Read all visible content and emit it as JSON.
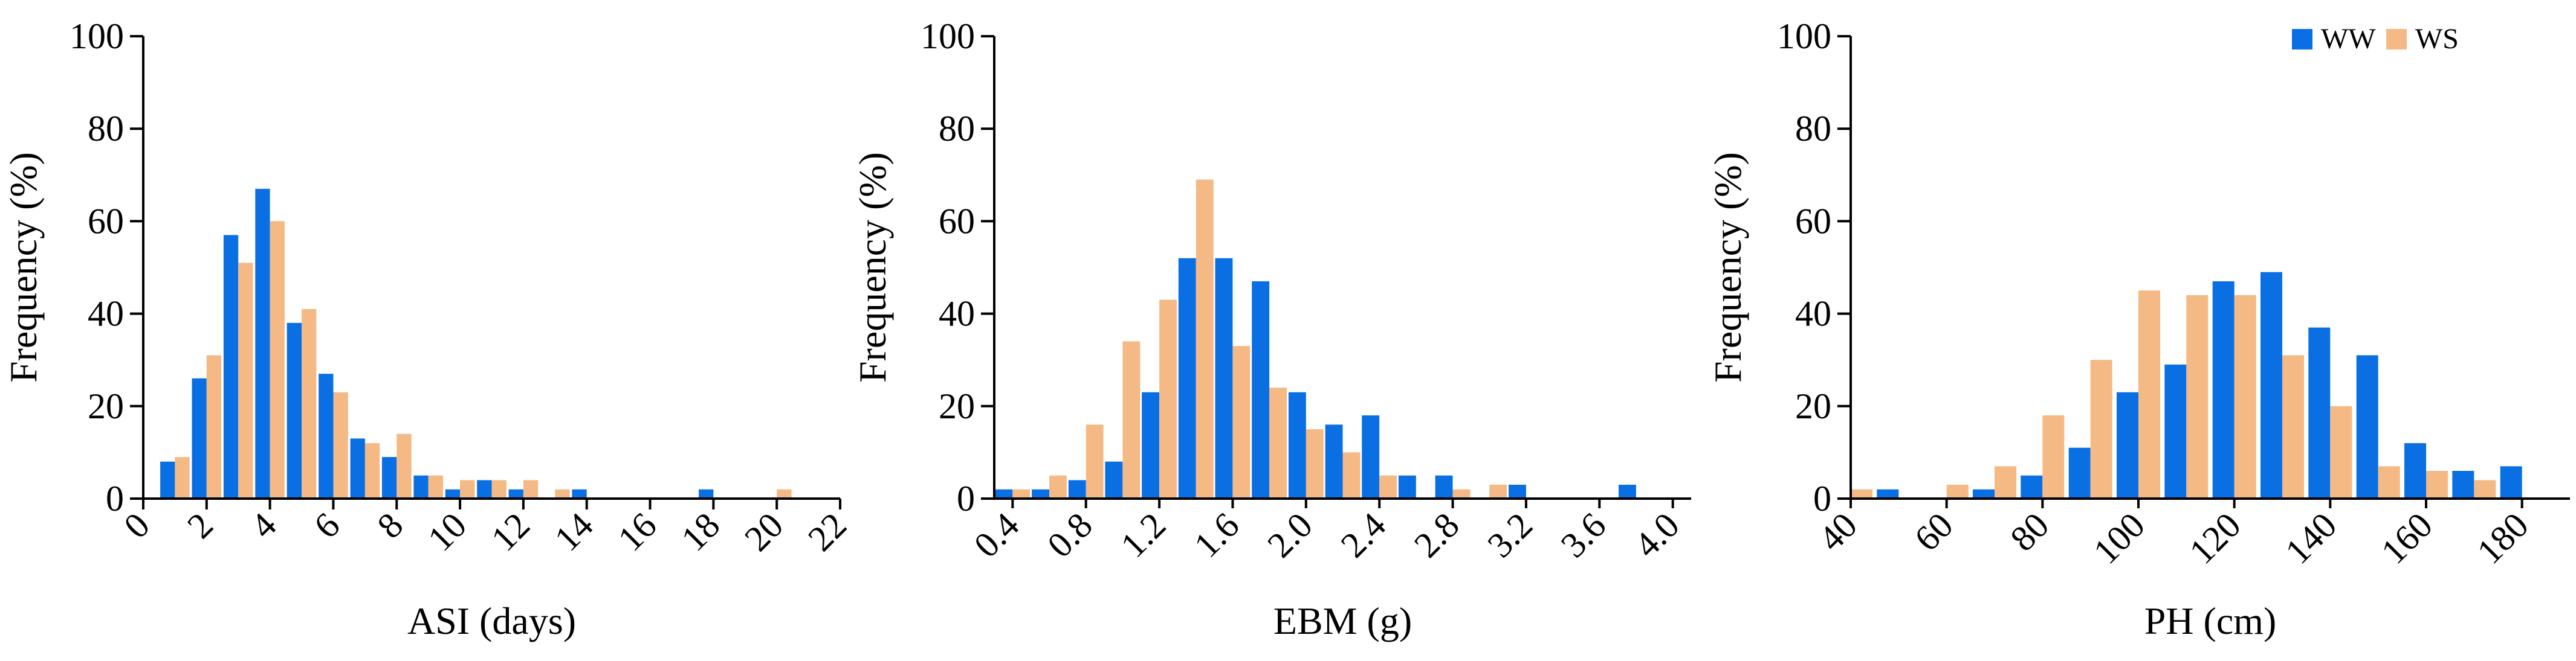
{
  "colors": {
    "WW": "#0a6fe3",
    "WS": "#f4b984"
  },
  "legend": {
    "placement": "top-right",
    "items": [
      "WW",
      "WS"
    ]
  },
  "chart_data": [
    {
      "type": "bar",
      "xlabel": "ASI (days)",
      "ylabel": "Frequency (%)",
      "xlim": [
        0,
        22
      ],
      "ylim": [
        0,
        100
      ],
      "xticks": [
        "0",
        "2",
        "4",
        "6",
        "8",
        "10",
        "12",
        "14",
        "16",
        "18",
        "20",
        "22"
      ],
      "yticks": [
        "0",
        "20",
        "40",
        "60",
        "80",
        "100"
      ],
      "grid": false,
      "categories": [
        1,
        2,
        3,
        4,
        5,
        6,
        7,
        8,
        9,
        10,
        11,
        12,
        13,
        14,
        15,
        16,
        17,
        18,
        19,
        20,
        21
      ],
      "series": [
        {
          "name": "WW",
          "values": [
            8,
            26,
            57,
            67,
            38,
            27,
            13,
            9,
            5,
            2,
            4,
            2,
            0,
            2,
            0,
            0,
            0,
            2,
            0,
            0,
            0
          ]
        },
        {
          "name": "WS",
          "values": [
            9,
            31,
            51,
            60,
            41,
            23,
            12,
            14,
            5,
            4,
            4,
            4,
            2,
            0,
            0,
            0,
            0,
            0,
            0,
            2,
            0
          ]
        }
      ]
    },
    {
      "type": "bar",
      "xlabel": "EBM (g)",
      "ylabel": "Frequency (%)",
      "xlim": [
        0.3,
        4.1
      ],
      "ylim": [
        0,
        100
      ],
      "xticks": [
        "0.4",
        "0.8",
        "1.2",
        "1.6",
        "2.0",
        "2.4",
        "2.8",
        "3.2",
        "3.6",
        "4.0"
      ],
      "yticks": [
        "0",
        "20",
        "40",
        "60",
        "80",
        "100"
      ],
      "grid": false,
      "categories": [
        0.4,
        0.6,
        0.8,
        1.0,
        1.2,
        1.4,
        1.6,
        1.8,
        2.0,
        2.2,
        2.4,
        2.6,
        2.8,
        3.0,
        3.2,
        3.4,
        3.6,
        3.8
      ],
      "series": [
        {
          "name": "WW",
          "values": [
            2,
            2,
            4,
            8,
            23,
            52,
            52,
            47,
            23,
            16,
            18,
            5,
            5,
            0,
            3,
            0,
            0,
            3
          ]
        },
        {
          "name": "WS",
          "values": [
            2,
            5,
            16,
            34,
            43,
            69,
            33,
            24,
            15,
            10,
            5,
            0,
            2,
            3,
            0,
            0,
            0,
            0
          ]
        }
      ]
    },
    {
      "type": "bar",
      "xlabel": "PH (cm)",
      "ylabel": "Frequency (%)",
      "xlim": [
        40,
        190
      ],
      "ylim": [
        0,
        100
      ],
      "xticks": [
        "40",
        "60",
        "80",
        "100",
        "120",
        "140",
        "160",
        "180"
      ],
      "yticks": [
        "0",
        "20",
        "40",
        "60",
        "80",
        "100"
      ],
      "grid": false,
      "categories": [
        40,
        50,
        60,
        70,
        80,
        90,
        100,
        110,
        120,
        130,
        140,
        150,
        160,
        170,
        180
      ],
      "series": [
        {
          "name": "WW",
          "values": [
            0,
            2,
            0,
            2,
            5,
            11,
            23,
            29,
            47,
            49,
            37,
            31,
            12,
            6,
            7
          ]
        },
        {
          "name": "WS",
          "values": [
            2,
            0,
            3,
            7,
            18,
            30,
            45,
            44,
            44,
            31,
            20,
            7,
            6,
            4,
            0
          ]
        }
      ]
    }
  ]
}
